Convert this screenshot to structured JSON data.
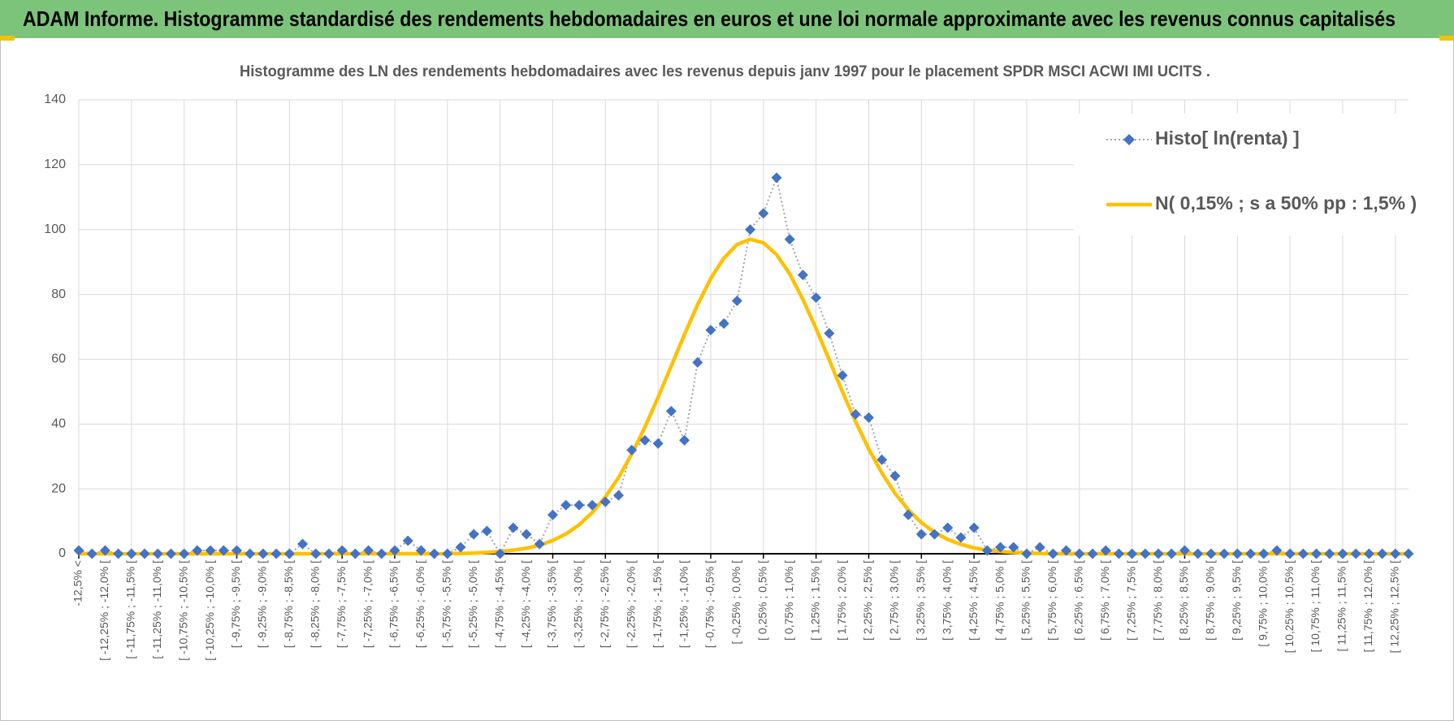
{
  "chart_data": {
    "type": "line",
    "header": "ADAM Informe. Histogramme standardisé des rendements hebdomadaires en euros et une loi normale approximante avec les revenus connus capitalisés",
    "title": "Histogramme des LN des rendements hebdomadaires avec les revenus depuis janv 1997 pour le placement SPDR MSCI ACWI IMI UCITS .",
    "categories": [
      "-12,5% <",
      null,
      "[ -12,25% ; -12,0% [",
      null,
      "[ -11,75% ; -11,5% [",
      null,
      "[ -11,25% ; -11,0% [",
      null,
      "[ -10,75% ; -10,5% [",
      null,
      "[ -10,25% ; -10,0% [",
      null,
      "[ -9,75% ; -9,5% [",
      null,
      "[ -9,25% ; -9,0% [",
      null,
      "[ -8,75% ; -8,5% [",
      null,
      "[ -8,25% ; -8,0% [",
      null,
      "[ -7,75% ; -7,5% [",
      null,
      "[ -7,25% ; -7,0% [",
      null,
      "[ -6,75% ; -6,5% [",
      null,
      "[ -6,25% ; -6,0% [",
      null,
      "[ -5,75% ; -5,5% [",
      null,
      "[ -5,25% ; -5,0% [",
      null,
      "[ -4,75% ; -4,5% [",
      null,
      "[ -4,25% ; -4,0% [",
      null,
      "[ -3,75% ; -3,5% [",
      null,
      "[ -3,25% ; -3,0% [",
      null,
      "[ -2,75% ; -2,5% [",
      null,
      "[ -2,25% ; -2,0% [",
      null,
      "[ -1,75% ; -1,5% [",
      null,
      "[ -1,25% ; -1,0% [",
      null,
      "[ -0,75% ; -0,5% [",
      null,
      "[ -0,25% ; 0,0% [",
      null,
      "[ 0,25% ; 0,5% [",
      null,
      "[ 0,75% ; 1,0% [",
      null,
      "[ 1,25% ; 1,5% [",
      null,
      "[ 1,75% ; 2,0% [",
      null,
      "[ 2,25% ; 2,5% [",
      null,
      "[ 2,75% ; 3,0% [",
      null,
      "[ 3,25% ; 3,5% [",
      null,
      "[ 3,75% ; 4,0% [",
      null,
      "[ 4,25% ; 4,5% [",
      null,
      "[ 4,75% ; 5,0% [",
      null,
      "[ 5,25% ; 5,5% [",
      null,
      "[ 5,75% ; 6,0% [",
      null,
      "[ 6,25% ; 6,5% [",
      null,
      "[ 6,75% ; 7,0% [",
      null,
      "[ 7,25% ; 7,5% [",
      null,
      "[ 7,75% ; 8,0% [",
      null,
      "[ 8,25% ; 8,5% [",
      null,
      "[ 8,75% ; 9,0% [",
      null,
      "[ 9,25% ; 9,5% [",
      null,
      "[ 9,75% ; 10,0% [",
      null,
      "[ 10,25% ; 10,5% [",
      null,
      "[ 10,75% ; 11,0% [",
      null,
      "[ 11,25% ; 11,5% [",
      null,
      "[ 11,75% ; 12,0% [",
      null,
      "[ 12,25% ; 12,5% [",
      null
    ],
    "series": [
      {
        "name": "Histo[ ln(renta) ]",
        "color": "#4472c4",
        "values": [
          1,
          0,
          1,
          0,
          0,
          0,
          0,
          0,
          0,
          1,
          1,
          1,
          1,
          0,
          0,
          0,
          0,
          3,
          0,
          0,
          1,
          0,
          1,
          0,
          1,
          4,
          1,
          0,
          0,
          2,
          6,
          7,
          0,
          8,
          6,
          3,
          12,
          15,
          15,
          15,
          16,
          18,
          32,
          35,
          34,
          44,
          35,
          59,
          69,
          71,
          78,
          100,
          105,
          116,
          97,
          86,
          79,
          68,
          55,
          43,
          42,
          29,
          24,
          12,
          6,
          6,
          8,
          5,
          8,
          1,
          2,
          2,
          0,
          2,
          0,
          1,
          0,
          0,
          1,
          0,
          0,
          0,
          0,
          0,
          1,
          0,
          0,
          0,
          0,
          0,
          0,
          1,
          0,
          0,
          0,
          0,
          0,
          0,
          0,
          0,
          0,
          0
        ]
      },
      {
        "name": "N( 0,15% ; s a 50% pp : 1,5% )",
        "color": "#ffc000",
        "values": [
          0,
          0,
          0,
          0,
          0,
          0,
          0,
          0,
          0,
          0,
          0,
          0,
          0,
          0,
          0,
          0,
          0,
          0,
          0,
          0,
          0,
          0,
          0,
          0,
          0,
          0,
          0,
          0,
          0,
          0.1,
          0.2,
          0.4,
          0.7,
          1.1,
          1.7,
          2.6,
          4.1,
          6.1,
          8.9,
          12.7,
          17.5,
          23.5,
          30.7,
          39,
          48.2,
          57.9,
          67.6,
          76.8,
          84.9,
          91.2,
          95.4,
          97,
          95.9,
          92.3,
          86.3,
          78.5,
          69.5,
          59.8,
          50,
          40.8,
          32.3,
          24.9,
          18.6,
          13.6,
          9.6,
          6.6,
          4.4,
          2.9,
          1.8,
          1.1,
          0.7,
          0.4,
          0.2,
          0.1,
          0,
          0,
          0,
          0,
          0,
          0,
          0,
          0,
          0,
          0,
          0,
          0,
          0,
          0,
          0,
          0,
          0,
          0,
          0,
          0,
          0,
          0,
          0,
          0,
          0,
          0,
          0,
          0
        ]
      }
    ],
    "ylim": [
      0,
      140
    ],
    "yticks": [
      0,
      20,
      40,
      60,
      80,
      100,
      120,
      140
    ],
    "grid": true,
    "legend": "top-right"
  }
}
